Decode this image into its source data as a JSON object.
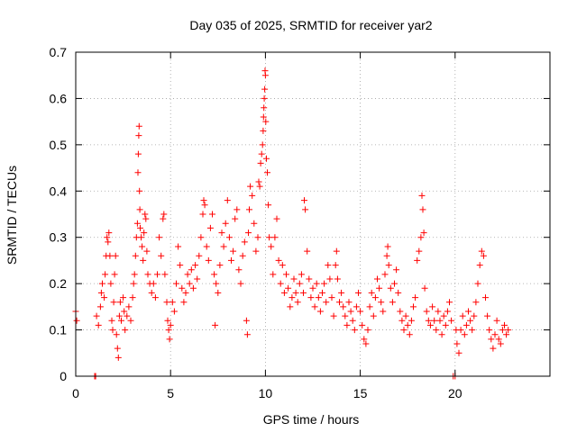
{
  "chart_data": {
    "type": "scatter",
    "title": "Day 035 of 2025, SRMTID for receiver yar2",
    "xlabel": "GPS time / hours",
    "ylabel": "SRMTID / TECUs",
    "xlim": [
      0,
      25
    ],
    "ylim": [
      0,
      0.7
    ],
    "xticks": [
      0,
      5,
      10,
      15,
      20
    ],
    "xtick_labels": [
      "0",
      "5",
      "10",
      "15",
      "20"
    ],
    "yticks": [
      0,
      0.1,
      0.2,
      0.3,
      0.4,
      0.5,
      0.6,
      0.7
    ],
    "ytick_labels": [
      "0",
      "0.1",
      "0.2",
      "0.3",
      "0.4",
      "0.5",
      "0.6",
      "0.7"
    ],
    "grid": true,
    "marker": "+",
    "series": [
      {
        "name": "SRMTID",
        "color": "#ff0000",
        "points": [
          [
            0.0,
            0.14
          ],
          [
            0.05,
            0.12
          ],
          [
            1.0,
            0.0
          ],
          [
            1.05,
            0.0
          ],
          [
            1.1,
            0.13
          ],
          [
            1.2,
            0.11
          ],
          [
            1.3,
            0.15
          ],
          [
            1.35,
            0.18
          ],
          [
            1.4,
            0.2
          ],
          [
            1.5,
            0.17
          ],
          [
            1.55,
            0.22
          ],
          [
            1.6,
            0.26
          ],
          [
            1.65,
            0.3
          ],
          [
            1.7,
            0.29
          ],
          [
            1.75,
            0.31
          ],
          [
            1.8,
            0.26
          ],
          [
            1.85,
            0.2
          ],
          [
            1.9,
            0.12
          ],
          [
            1.95,
            0.1
          ],
          [
            2.0,
            0.16
          ],
          [
            2.05,
            0.22
          ],
          [
            2.1,
            0.26
          ],
          [
            2.15,
            0.09
          ],
          [
            2.2,
            0.06
          ],
          [
            2.25,
            0.04
          ],
          [
            2.3,
            0.13
          ],
          [
            2.35,
            0.16
          ],
          [
            2.4,
            0.12
          ],
          [
            2.5,
            0.17
          ],
          [
            2.55,
            0.14
          ],
          [
            2.6,
            0.1
          ],
          [
            2.7,
            0.13
          ],
          [
            2.8,
            0.15
          ],
          [
            2.9,
            0.12
          ],
          [
            3.0,
            0.17
          ],
          [
            3.05,
            0.2
          ],
          [
            3.1,
            0.22
          ],
          [
            3.15,
            0.26
          ],
          [
            3.2,
            0.3
          ],
          [
            3.25,
            0.33
          ],
          [
            3.28,
            0.44
          ],
          [
            3.3,
            0.48
          ],
          [
            3.32,
            0.52
          ],
          [
            3.34,
            0.54
          ],
          [
            3.36,
            0.4
          ],
          [
            3.38,
            0.36
          ],
          [
            3.4,
            0.32
          ],
          [
            3.45,
            0.3
          ],
          [
            3.5,
            0.28
          ],
          [
            3.55,
            0.25
          ],
          [
            3.6,
            0.31
          ],
          [
            3.65,
            0.35
          ],
          [
            3.7,
            0.34
          ],
          [
            3.75,
            0.27
          ],
          [
            3.8,
            0.22
          ],
          [
            3.9,
            0.2
          ],
          [
            4.0,
            0.18
          ],
          [
            4.1,
            0.2
          ],
          [
            4.2,
            0.17
          ],
          [
            4.3,
            0.22
          ],
          [
            4.4,
            0.3
          ],
          [
            4.5,
            0.26
          ],
          [
            4.6,
            0.34
          ],
          [
            4.65,
            0.35
          ],
          [
            4.7,
            0.22
          ],
          [
            4.8,
            0.16
          ],
          [
            4.85,
            0.12
          ],
          [
            4.9,
            0.1
          ],
          [
            4.95,
            0.08
          ],
          [
            5.0,
            0.11
          ],
          [
            5.1,
            0.16
          ],
          [
            5.2,
            0.14
          ],
          [
            5.3,
            0.2
          ],
          [
            5.4,
            0.28
          ],
          [
            5.5,
            0.24
          ],
          [
            5.6,
            0.19
          ],
          [
            5.7,
            0.16
          ],
          [
            5.8,
            0.18
          ],
          [
            5.9,
            0.22
          ],
          [
            6.0,
            0.2
          ],
          [
            6.1,
            0.23
          ],
          [
            6.2,
            0.19
          ],
          [
            6.3,
            0.24
          ],
          [
            6.4,
            0.21
          ],
          [
            6.5,
            0.26
          ],
          [
            6.6,
            0.3
          ],
          [
            6.7,
            0.35
          ],
          [
            6.75,
            0.38
          ],
          [
            6.8,
            0.37
          ],
          [
            6.9,
            0.28
          ],
          [
            7.0,
            0.25
          ],
          [
            7.1,
            0.32
          ],
          [
            7.2,
            0.35
          ],
          [
            7.3,
            0.22
          ],
          [
            7.35,
            0.11
          ],
          [
            7.4,
            0.2
          ],
          [
            7.5,
            0.18
          ],
          [
            7.6,
            0.24
          ],
          [
            7.7,
            0.31
          ],
          [
            7.8,
            0.28
          ],
          [
            7.9,
            0.33
          ],
          [
            8.0,
            0.38
          ],
          [
            8.1,
            0.3
          ],
          [
            8.2,
            0.25
          ],
          [
            8.3,
            0.27
          ],
          [
            8.4,
            0.34
          ],
          [
            8.5,
            0.36
          ],
          [
            8.6,
            0.23
          ],
          [
            8.7,
            0.2
          ],
          [
            8.8,
            0.26
          ],
          [
            8.9,
            0.29
          ],
          [
            9.0,
            0.12
          ],
          [
            9.05,
            0.09
          ],
          [
            9.1,
            0.31
          ],
          [
            9.15,
            0.36
          ],
          [
            9.2,
            0.41
          ],
          [
            9.3,
            0.39
          ],
          [
            9.4,
            0.33
          ],
          [
            9.5,
            0.27
          ],
          [
            9.6,
            0.3
          ],
          [
            9.65,
            0.42
          ],
          [
            9.7,
            0.41
          ],
          [
            9.75,
            0.46
          ],
          [
            9.8,
            0.48
          ],
          [
            9.85,
            0.5
          ],
          [
            9.88,
            0.53
          ],
          [
            9.9,
            0.56
          ],
          [
            9.92,
            0.58
          ],
          [
            9.94,
            0.6
          ],
          [
            9.96,
            0.62
          ],
          [
            9.98,
            0.66
          ],
          [
            10.0,
            0.65
          ],
          [
            10.02,
            0.55
          ],
          [
            10.05,
            0.47
          ],
          [
            10.1,
            0.44
          ],
          [
            10.15,
            0.37
          ],
          [
            10.2,
            0.3
          ],
          [
            10.3,
            0.28
          ],
          [
            10.4,
            0.22
          ],
          [
            10.5,
            0.3
          ],
          [
            10.6,
            0.34
          ],
          [
            10.7,
            0.25
          ],
          [
            10.8,
            0.2
          ],
          [
            10.9,
            0.24
          ],
          [
            11.0,
            0.18
          ],
          [
            11.1,
            0.22
          ],
          [
            11.2,
            0.19
          ],
          [
            11.3,
            0.15
          ],
          [
            11.4,
            0.17
          ],
          [
            11.5,
            0.21
          ],
          [
            11.6,
            0.18
          ],
          [
            11.7,
            0.16
          ],
          [
            11.8,
            0.2
          ],
          [
            11.9,
            0.22
          ],
          [
            12.0,
            0.18
          ],
          [
            12.05,
            0.38
          ],
          [
            12.1,
            0.36
          ],
          [
            12.2,
            0.27
          ],
          [
            12.3,
            0.21
          ],
          [
            12.4,
            0.17
          ],
          [
            12.5,
            0.19
          ],
          [
            12.6,
            0.15
          ],
          [
            12.7,
            0.2
          ],
          [
            12.8,
            0.17
          ],
          [
            12.9,
            0.14
          ],
          [
            13.0,
            0.18
          ],
          [
            13.1,
            0.2
          ],
          [
            13.2,
            0.16
          ],
          [
            13.3,
            0.24
          ],
          [
            13.4,
            0.21
          ],
          [
            13.5,
            0.17
          ],
          [
            13.6,
            0.13
          ],
          [
            13.7,
            0.24
          ],
          [
            13.75,
            0.27
          ],
          [
            13.8,
            0.21
          ],
          [
            13.9,
            0.16
          ],
          [
            14.0,
            0.18
          ],
          [
            14.1,
            0.15
          ],
          [
            14.2,
            0.13
          ],
          [
            14.3,
            0.11
          ],
          [
            14.4,
            0.16
          ],
          [
            14.5,
            0.14
          ],
          [
            14.6,
            0.12
          ],
          [
            14.7,
            0.1
          ],
          [
            14.8,
            0.15
          ],
          [
            14.9,
            0.18
          ],
          [
            15.0,
            0.14
          ],
          [
            15.1,
            0.11
          ],
          [
            15.2,
            0.08
          ],
          [
            15.3,
            0.07
          ],
          [
            15.4,
            0.1
          ],
          [
            15.5,
            0.15
          ],
          [
            15.6,
            0.18
          ],
          [
            15.7,
            0.13
          ],
          [
            15.8,
            0.17
          ],
          [
            15.9,
            0.21
          ],
          [
            16.0,
            0.19
          ],
          [
            16.1,
            0.16
          ],
          [
            16.2,
            0.14
          ],
          [
            16.3,
            0.22
          ],
          [
            16.4,
            0.26
          ],
          [
            16.45,
            0.28
          ],
          [
            16.5,
            0.24
          ],
          [
            16.6,
            0.19
          ],
          [
            16.7,
            0.16
          ],
          [
            16.8,
            0.2
          ],
          [
            16.9,
            0.23
          ],
          [
            17.0,
            0.18
          ],
          [
            17.1,
            0.14
          ],
          [
            17.2,
            0.12
          ],
          [
            17.3,
            0.1
          ],
          [
            17.4,
            0.13
          ],
          [
            17.5,
            0.11
          ],
          [
            17.6,
            0.09
          ],
          [
            17.7,
            0.12
          ],
          [
            17.8,
            0.15
          ],
          [
            17.9,
            0.17
          ],
          [
            18.0,
            0.25
          ],
          [
            18.1,
            0.27
          ],
          [
            18.2,
            0.3
          ],
          [
            18.25,
            0.39
          ],
          [
            18.3,
            0.36
          ],
          [
            18.35,
            0.31
          ],
          [
            18.4,
            0.19
          ],
          [
            18.5,
            0.14
          ],
          [
            18.6,
            0.12
          ],
          [
            18.7,
            0.11
          ],
          [
            18.8,
            0.15
          ],
          [
            18.9,
            0.12
          ],
          [
            19.0,
            0.1
          ],
          [
            19.1,
            0.14
          ],
          [
            19.2,
            0.12
          ],
          [
            19.3,
            0.09
          ],
          [
            19.4,
            0.13
          ],
          [
            19.5,
            0.11
          ],
          [
            19.6,
            0.14
          ],
          [
            19.7,
            0.16
          ],
          [
            19.8,
            0.12
          ],
          [
            19.9,
            0.0
          ],
          [
            20.0,
            0.0
          ],
          [
            20.05,
            0.1
          ],
          [
            20.1,
            0.07
          ],
          [
            20.2,
            0.05
          ],
          [
            20.3,
            0.1
          ],
          [
            20.4,
            0.13
          ],
          [
            20.5,
            0.09
          ],
          [
            20.6,
            0.11
          ],
          [
            20.7,
            0.14
          ],
          [
            20.8,
            0.12
          ],
          [
            20.9,
            0.1
          ],
          [
            21.0,
            0.13
          ],
          [
            21.1,
            0.16
          ],
          [
            21.2,
            0.2
          ],
          [
            21.3,
            0.24
          ],
          [
            21.4,
            0.27
          ],
          [
            21.5,
            0.26
          ],
          [
            21.6,
            0.17
          ],
          [
            21.7,
            0.13
          ],
          [
            21.8,
            0.1
          ],
          [
            21.9,
            0.08
          ],
          [
            22.0,
            0.06
          ],
          [
            22.1,
            0.09
          ],
          [
            22.2,
            0.12
          ],
          [
            22.3,
            0.08
          ],
          [
            22.4,
            0.07
          ],
          [
            22.5,
            0.1
          ],
          [
            22.6,
            0.11
          ],
          [
            22.7,
            0.09
          ],
          [
            22.8,
            0.1
          ]
        ]
      }
    ]
  }
}
